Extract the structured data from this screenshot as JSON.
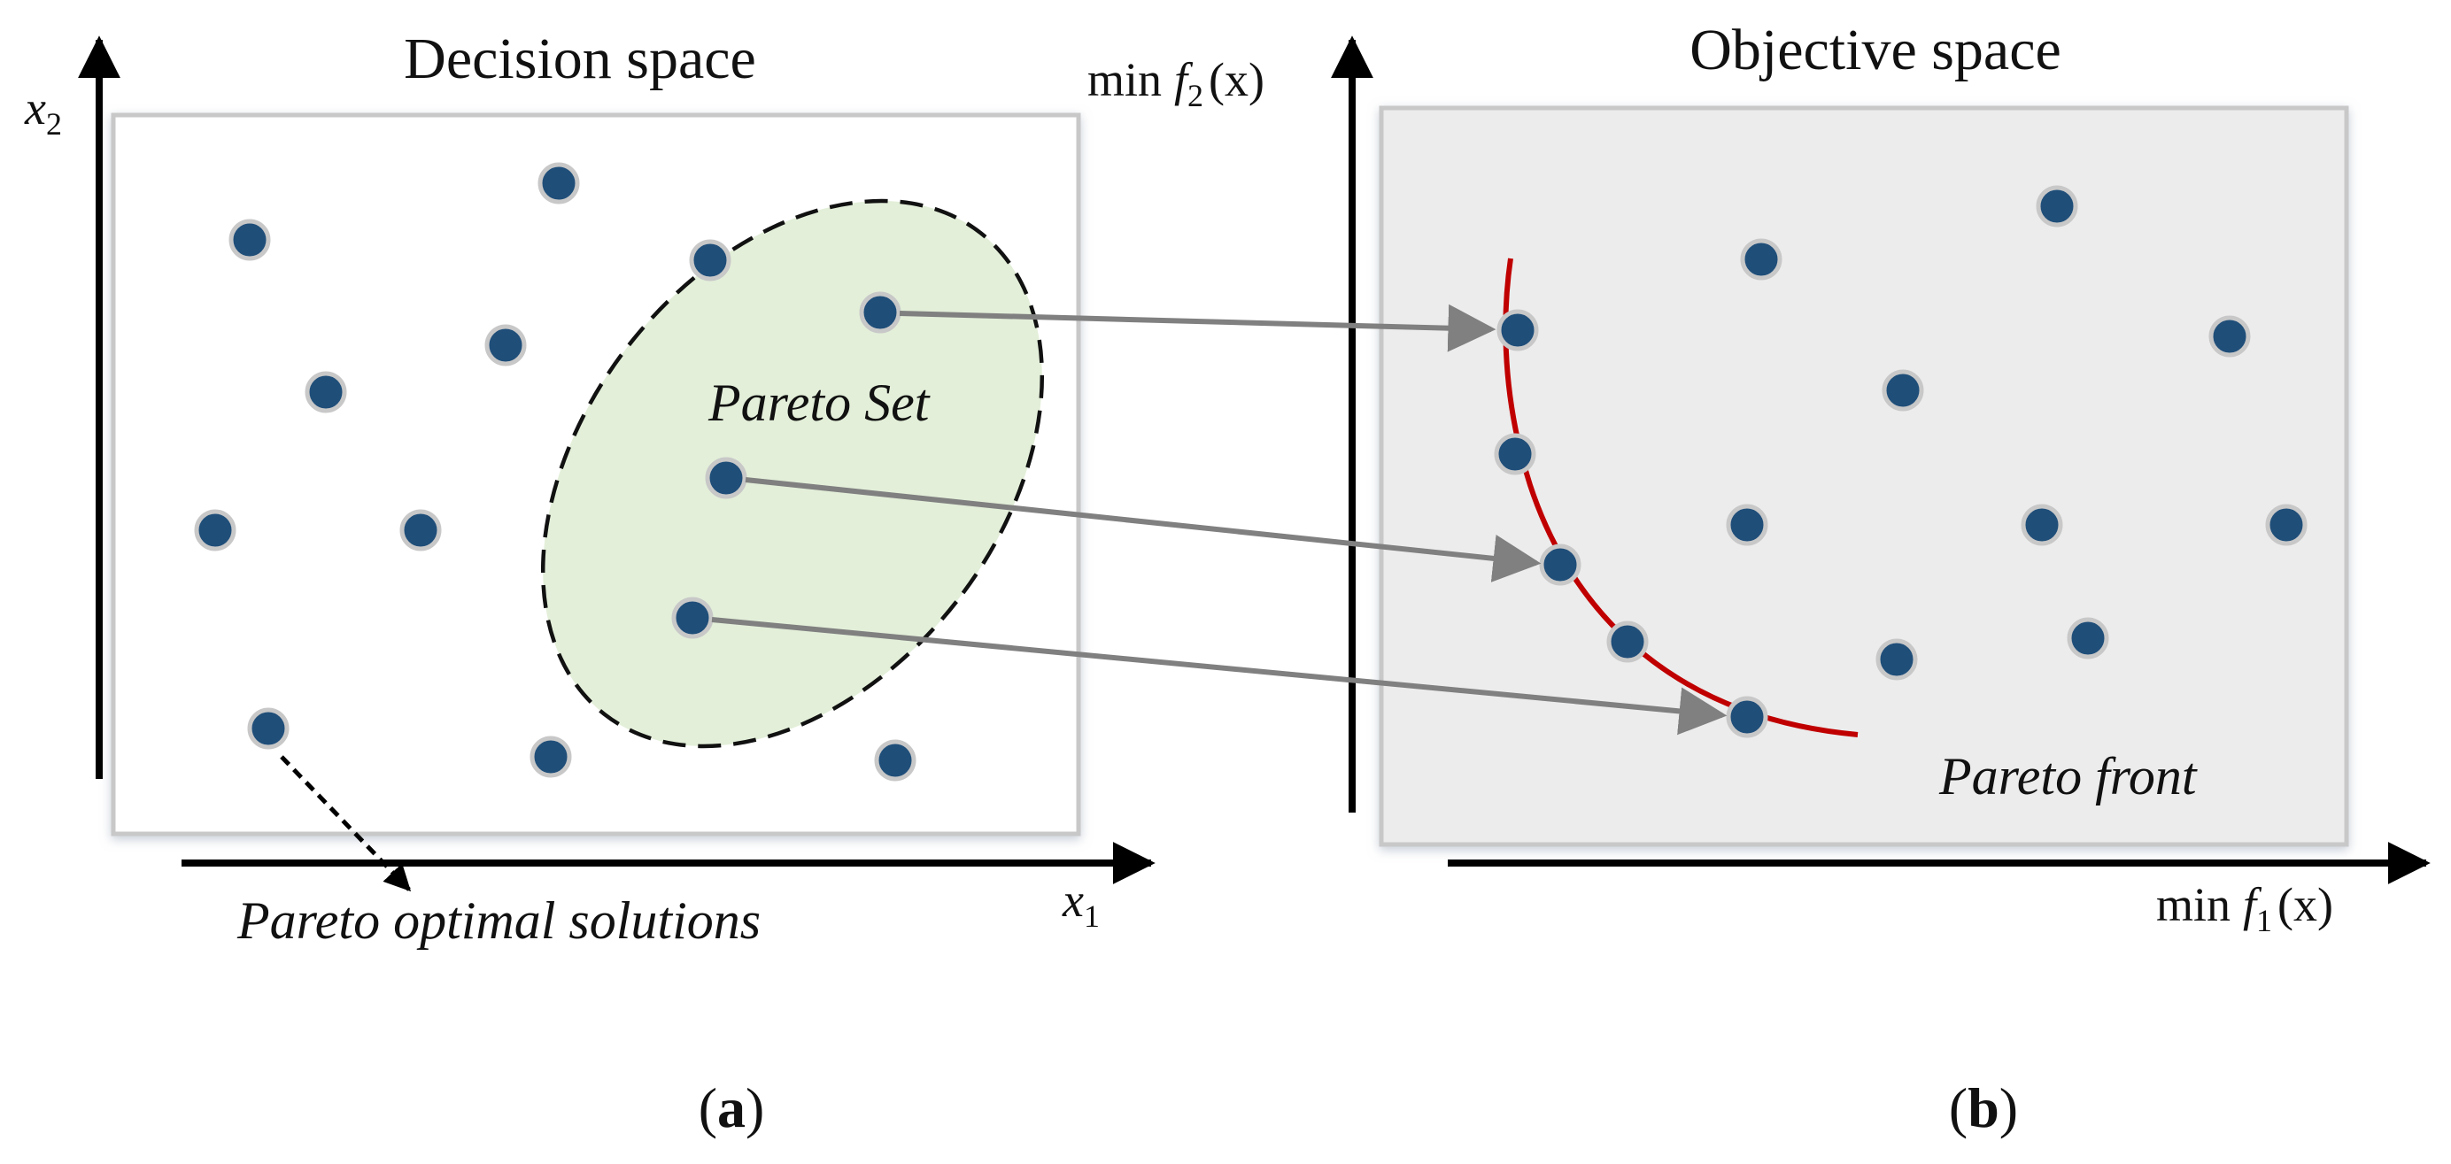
{
  "panel_a": {
    "title": "Decision space",
    "x_axis": {
      "var": "x",
      "sub": "1"
    },
    "y_axis": {
      "var": "x",
      "sub": "2"
    },
    "set_label": "Pareto Set",
    "solutions_label": "Pareto optimal solutions",
    "caption": {
      "open": "(",
      "letter": "a",
      "close": ")"
    }
  },
  "panel_b": {
    "title": "Objective space",
    "x_axis": {
      "min": "min",
      "f": "f",
      "sub": "1",
      "arg": "(x)"
    },
    "y_axis": {
      "min": "min",
      "f": "f",
      "sub": "2",
      "arg": "(x)"
    },
    "front_label": "Pareto front",
    "caption": {
      "open": "(",
      "letter": "b",
      "close": ")"
    }
  },
  "colors": {
    "point": "#1f4e79",
    "point_halo": "#c8c8c8",
    "pareto_set_fill": "#e3efd9",
    "pareto_front": "#c00000",
    "mapping_arrow": "#808080",
    "objective_bg": "#ececec",
    "panel_border": "#c8c8c8"
  }
}
